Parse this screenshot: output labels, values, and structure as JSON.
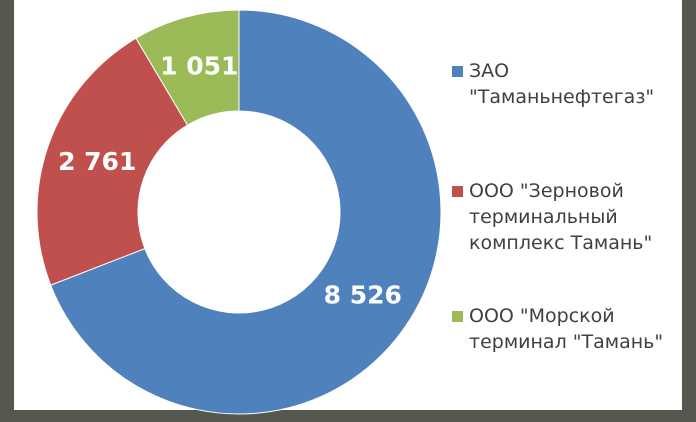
{
  "chart_data": {
    "type": "donut",
    "categories": [
      "ЗАО \"Таманьнефтегаз\"",
      "ООО \"Зерновой терминальный комплекс Тамань\"",
      "ООО \"Морской терминал \"Тамань\""
    ],
    "values": [
      8526,
      2761,
      1051
    ],
    "value_labels": [
      "8 526",
      "2 761",
      "1 051"
    ],
    "colors": [
      "#4f81bd",
      "#c0504d",
      "#9bbb59"
    ],
    "legend": "right"
  }
}
